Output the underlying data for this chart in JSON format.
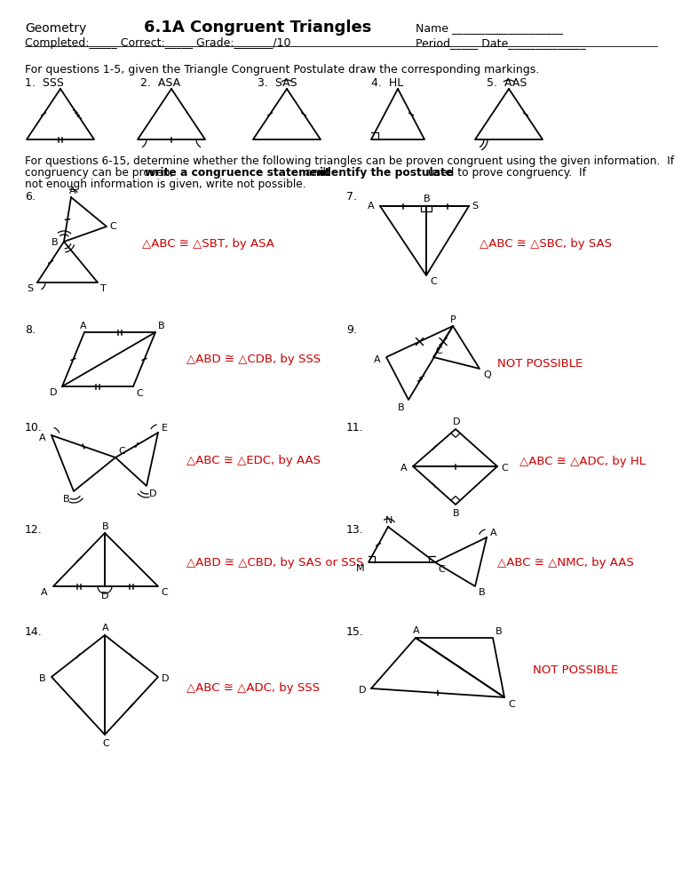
{
  "title": "6.1A Congruent Triangles",
  "answer_color": "#cc0000",
  "q6_answer": "△ABC ≅ △SBT, by ASA",
  "q7_answer": "△ABC ≅ △SBC, by SAS",
  "q8_answer": "△ABD ≅ △CDB, by SSS",
  "q9_answer": "NOT POSSIBLE",
  "q10_answer": "△ABC ≅ △EDC, by AAS",
  "q11_answer": "△ABC ≅ △ADC, by HL",
  "q12_answer": "△ABD ≅ △CBD, by SAS or SSS",
  "q13_answer": "△ABC ≅ △NMC, by AAS",
  "q14_answer": "△ABC ≅ △ADC, by SSS",
  "q15_answer": "NOT POSSIBLE",
  "bg_color": "#ffffff"
}
